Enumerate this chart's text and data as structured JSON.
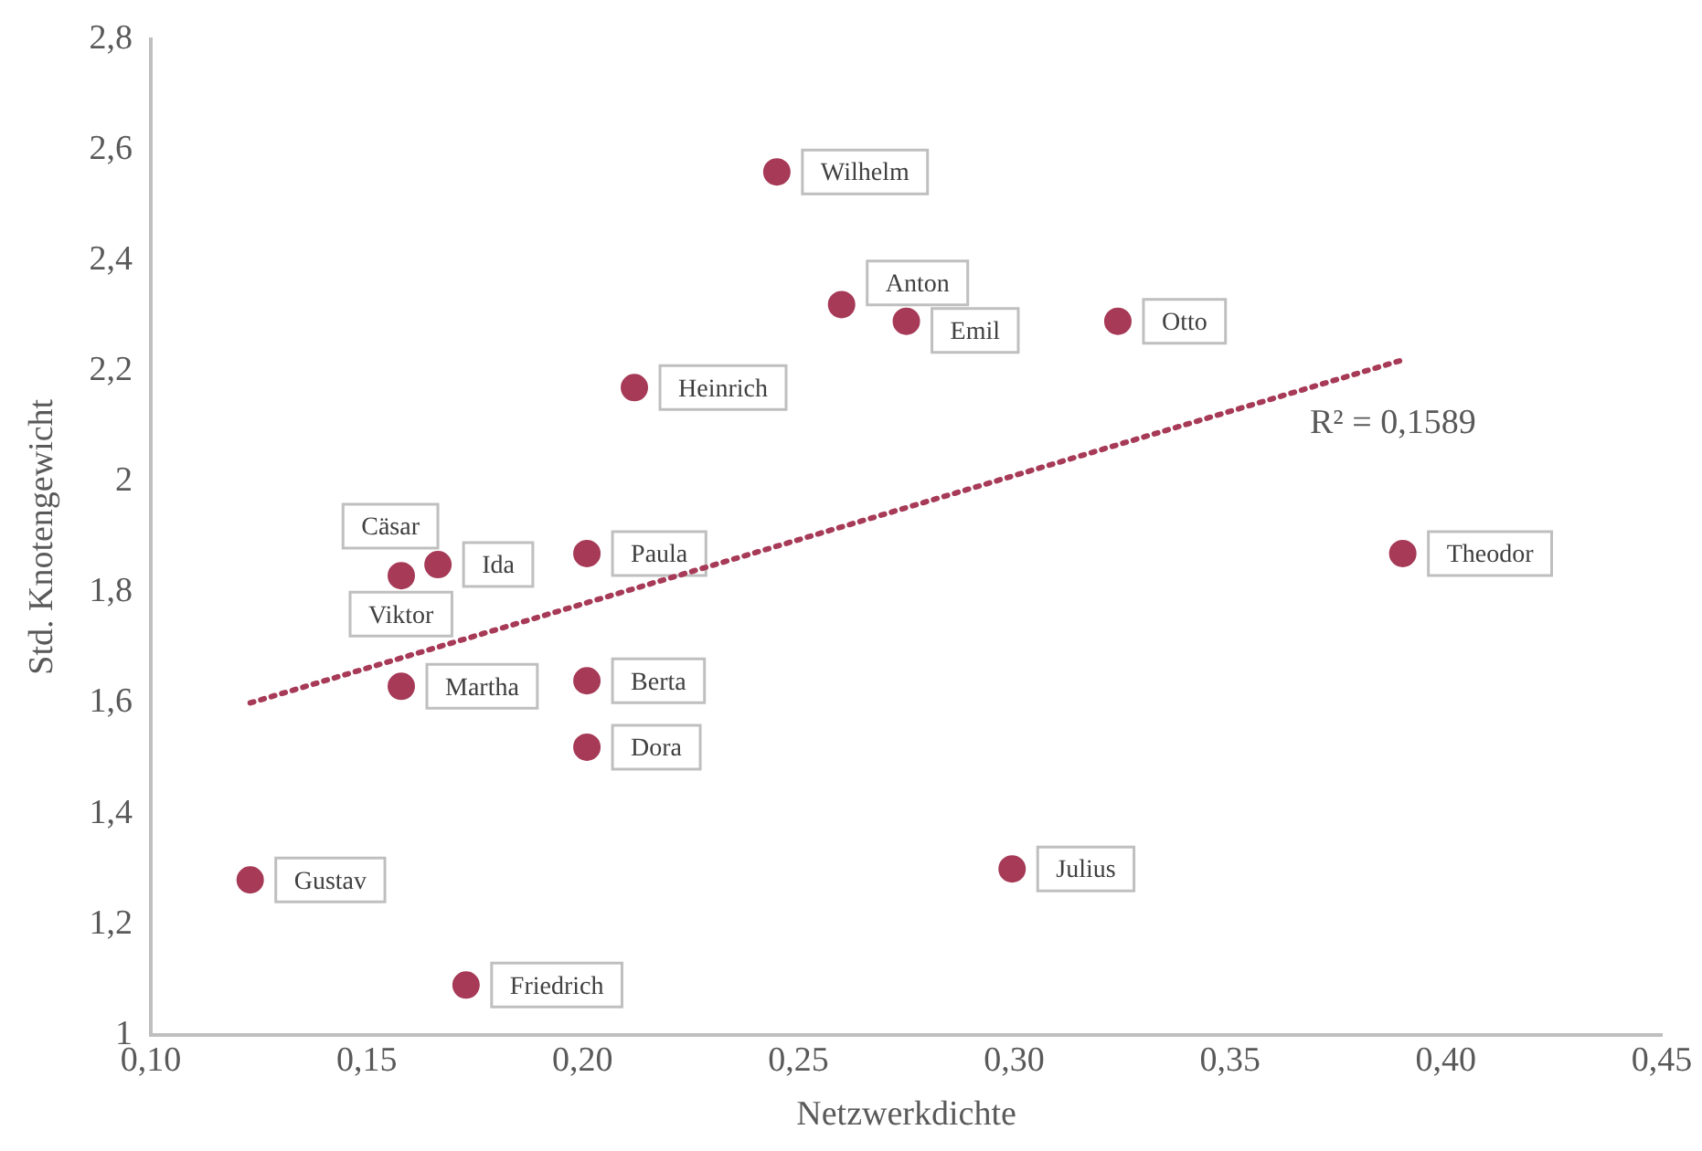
{
  "chart_data": {
    "type": "scatter",
    "xlabel": "Netzwerkdichte",
    "ylabel": "Std. Knotengewicht",
    "xlim": [
      0.1,
      0.45
    ],
    "xticks": [
      {
        "value": 0.1,
        "label": "0,10"
      },
      {
        "value": 0.15,
        "label": "0,15"
      },
      {
        "value": 0.2,
        "label": "0,20"
      },
      {
        "value": 0.25,
        "label": "0,25"
      },
      {
        "value": 0.3,
        "label": "0,30"
      },
      {
        "value": 0.35,
        "label": "0,35"
      },
      {
        "value": 0.4,
        "label": "0,40"
      },
      {
        "value": 0.45,
        "label": "0,45"
      }
    ],
    "ylim": [
      1,
      2.8
    ],
    "yticks": [
      1,
      {
        "value": 1.2,
        "label": "1,2"
      },
      {
        "value": 1.4,
        "label": "1,4"
      },
      {
        "value": 1.6,
        "label": "1,6"
      },
      {
        "value": 1.8,
        "label": "1,8"
      },
      2,
      {
        "value": 2.2,
        "label": "2,2"
      },
      {
        "value": 2.4,
        "label": "2,4"
      },
      {
        "value": 2.6,
        "label": "2,6"
      },
      {
        "value": 2.8,
        "label": "2,8"
      }
    ],
    "grid": false,
    "legend": false,
    "marker": "circle",
    "series": [
      {
        "color": "#a63a57",
        "x": [
          0.245,
          0.26,
          0.275,
          0.324,
          0.212,
          0.39,
          0.201,
          0.1665,
          0.158,
          0.158,
          0.201,
          0.201,
          0.2995,
          0.123,
          0.173
        ],
        "values": [
          2.56,
          2.32,
          2.29,
          2.29,
          2.17,
          1.87,
          1.87,
          1.85,
          1.83,
          1.63,
          1.64,
          1.52,
          1.3,
          1.28,
          1.09
        ]
      },
      {
        "type": "line",
        "color": "#a63a57",
        "line_style": "dotted",
        "marker": "none",
        "x": [
          0.123,
          0.39
        ],
        "values": [
          1.6,
          2.22
        ]
      }
    ],
    "annotations": [
      {
        "text": "Wilhelm",
        "x": 0.245,
        "y": 2.56
      },
      {
        "text": "Anton",
        "x": 0.26,
        "y": 2.32
      },
      {
        "text": "Emil",
        "x": 0.275,
        "y": 2.29
      },
      {
        "text": "Otto",
        "x": 0.324,
        "y": 2.29
      },
      {
        "text": "Heinrich",
        "x": 0.212,
        "y": 2.17
      },
      {
        "text": "Theodor",
        "x": 0.39,
        "y": 1.87
      },
      {
        "text": "Paula",
        "x": 0.201,
        "y": 1.87
      },
      {
        "text": "Ida",
        "x": 0.1665,
        "y": 1.85
      },
      {
        "text": "Cäsar",
        "x": 0.158,
        "y": 1.83
      },
      {
        "text": "Viktor",
        "x": 0.158,
        "y": 1.83
      },
      {
        "text": "Martha",
        "x": 0.158,
        "y": 1.63
      },
      {
        "text": "Berta",
        "x": 0.201,
        "y": 1.64
      },
      {
        "text": "Dora",
        "x": 0.201,
        "y": 1.52
      },
      {
        "text": "Julius",
        "x": 0.2995,
        "y": 1.3
      },
      {
        "text": "Gustav",
        "x": 0.123,
        "y": 1.28
      },
      {
        "text": "Friedrich",
        "x": 0.173,
        "y": 1.09
      },
      "R² = 0,1589"
    ]
  }
}
